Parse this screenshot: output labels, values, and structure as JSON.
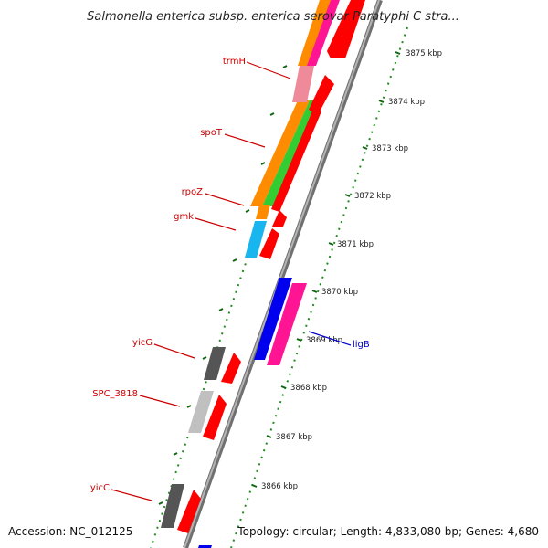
{
  "title": "Salmonella enterica subsp. enterica serovar Paratyphi C stra...",
  "footer": {
    "accession": "Accession: NC_012125",
    "topology": "Topology: circular; Length: 4,833,080 bp; Genes: 4,680"
  },
  "scale": {
    "ticks": [
      "3875 kbp",
      "3874 kbp",
      "3873 kbp",
      "3872 kbp",
      "3871 kbp",
      "3870 kbp",
      "3869 kbp",
      "3868 kbp",
      "3867 kbp",
      "3866 kbp"
    ]
  },
  "gene_labels": [
    {
      "text": "trmH",
      "color": "#cc0000"
    },
    {
      "text": "spoT",
      "color": "#cc0000"
    },
    {
      "text": "rpoZ",
      "color": "#cc0000"
    },
    {
      "text": "gmk",
      "color": "#cc0000"
    },
    {
      "text": "yicG",
      "color": "#cc0000"
    },
    {
      "text": "SPC_3818",
      "color": "#cc0000"
    },
    {
      "text": "yicC",
      "color": "#cc0000"
    },
    {
      "text": "ligB",
      "color": "#0000cc"
    }
  ],
  "colors": {
    "backbone": "#8a8a8a",
    "cds": "#ff0000",
    "orange": "#ff8c00",
    "green": "#33cc33",
    "magenta": "#ff1493",
    "pink": "#ee8a9a",
    "cyan": "#19b5ef",
    "blue": "#0000ee",
    "dark_gray": "#555555",
    "light_gray": "#c0c0c0",
    "dots": "#228b22"
  }
}
